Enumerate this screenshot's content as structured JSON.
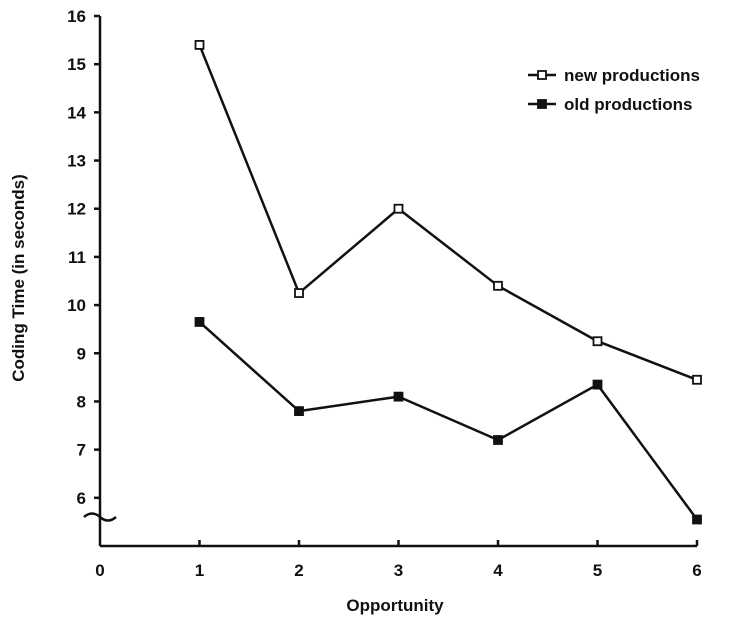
{
  "chart_data": {
    "type": "line",
    "title": "",
    "xlabel": "Opportunity",
    "ylabel": "Coding Time (in seconds)",
    "x": [
      1,
      2,
      3,
      4,
      5,
      6
    ],
    "xlim": [
      0,
      6
    ],
    "x_ticks": [
      "0",
      "1",
      "2",
      "3",
      "4",
      "5",
      "6"
    ],
    "ylim": [
      5,
      16
    ],
    "y_ticks": [
      "6",
      "7",
      "8",
      "9",
      "10",
      "11",
      "12",
      "13",
      "14",
      "15",
      "16"
    ],
    "y_axis_break": true,
    "grid": false,
    "legend_position": "top-right",
    "series": [
      {
        "name": "new productions",
        "marker": "open-square",
        "values": [
          15.4,
          10.25,
          12.0,
          10.4,
          9.25,
          8.45
        ]
      },
      {
        "name": "old productions",
        "marker": "filled-square",
        "values": [
          9.65,
          7.8,
          8.1,
          7.2,
          8.35,
          5.55
        ]
      }
    ]
  }
}
